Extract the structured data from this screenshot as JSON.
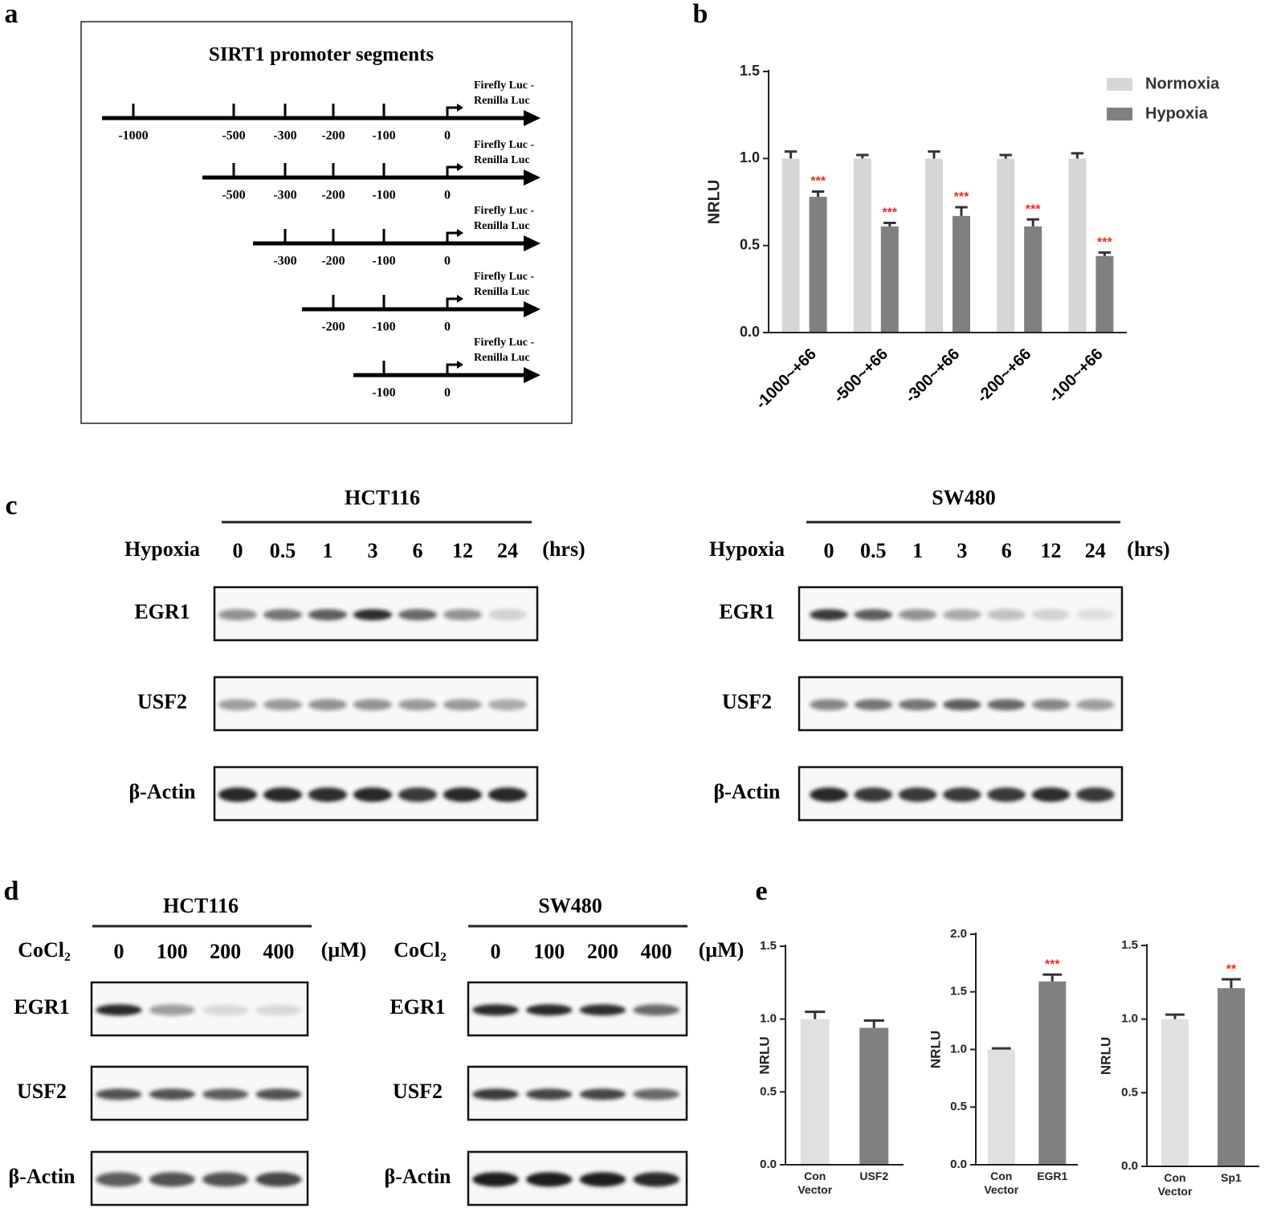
{
  "panel_labels": [
    "a",
    "b",
    "c",
    "d",
    "e"
  ],
  "a": {
    "title": "SIRT1 promoter segments",
    "segments": [
      {
        "ticks": [
          "-1000",
          "-500",
          "-300",
          "-200",
          "-100",
          "0"
        ],
        "reporter": [
          "Firefly Luc -",
          "Renilla Luc"
        ]
      },
      {
        "ticks": [
          "-500",
          "-300",
          "-200",
          "-100",
          "0"
        ],
        "reporter": [
          "Firefly Luc -",
          "Renilla Luc"
        ]
      },
      {
        "ticks": [
          "-300",
          "-200",
          "-100",
          "0"
        ],
        "reporter": [
          "Firefly Luc -",
          "Renilla Luc"
        ]
      },
      {
        "ticks": [
          "-200",
          "-100",
          "0"
        ],
        "reporter": [
          "Firefly Luc -",
          "Renilla Luc"
        ]
      },
      {
        "ticks": [
          "-100",
          "0"
        ],
        "reporter": [
          "Firefly Luc -",
          "Renilla Luc"
        ]
      }
    ]
  },
  "chart_data": [
    {
      "type": "bar",
      "ylabel": "NRLU",
      "categories": [
        "-1000~+66",
        "-500~+66",
        "-300~+66",
        "-200~+66",
        "-100~+66"
      ],
      "series": [
        {
          "name": "Normoxia",
          "color": "#d6d6d6",
          "values": [
            1.0,
            1.0,
            1.0,
            1.0,
            1.0
          ],
          "errors": [
            0.04,
            0.02,
            0.04,
            0.02,
            0.03
          ]
        },
        {
          "name": "Hypoxia",
          "color": "#808080",
          "values": [
            0.78,
            0.61,
            0.67,
            0.61,
            0.44
          ],
          "errors": [
            0.03,
            0.02,
            0.05,
            0.04,
            0.02
          ],
          "annotations": [
            "***",
            "***",
            "***",
            "***",
            "***"
          ]
        }
      ],
      "annotation_color": "#ff2020",
      "ylim": [
        0,
        1.5
      ],
      "yticks": [
        {
          "value": 0,
          "label": "0.0"
        },
        0.5,
        {
          "value": 1,
          "label": "1.0"
        },
        1.5
      ],
      "legend": "upper right"
    },
    {
      "type": "bar",
      "ylabel": "NRLU",
      "categories": [
        "Con\nVector",
        "USF2"
      ],
      "values": [
        1.0,
        0.94
      ],
      "errors": [
        0.05,
        0.05
      ],
      "colors": [
        "#e0e0e0",
        "#808080"
      ],
      "ylim": [
        0,
        1.5
      ],
      "yticks": [
        {
          "value": 0,
          "label": "0.0"
        },
        0.5,
        {
          "value": 1,
          "label": "1.0"
        },
        1.5
      ]
    },
    {
      "type": "bar",
      "ylabel": "NRLU",
      "categories": [
        "Con\nVector",
        "EGR1"
      ],
      "values": [
        1.0,
        1.59
      ],
      "errors": [
        0.01,
        0.06
      ],
      "colors": [
        "#e0e0e0",
        "#808080"
      ],
      "annotations": [
        null,
        "***"
      ],
      "annotation_color": "#ff2020",
      "ylim": [
        0,
        2
      ],
      "yticks": [
        {
          "value": 0,
          "label": "0.0"
        },
        0.5,
        {
          "value": 1,
          "label": "1.0"
        },
        1.5,
        {
          "value": 2,
          "label": "2.0"
        }
      ]
    },
    {
      "type": "bar",
      "ylabel": "NRLU",
      "categories": [
        "Con\nVector",
        "Sp1"
      ],
      "values": [
        1.0,
        1.21
      ],
      "errors": [
        0.03,
        0.06
      ],
      "colors": [
        "#e0e0e0",
        "#808080"
      ],
      "annotations": [
        null,
        "**"
      ],
      "annotation_color": "#ff2020",
      "ylim": [
        0,
        1.5
      ],
      "yticks": [
        {
          "value": 0,
          "label": "0.0"
        },
        0.5,
        {
          "value": 1,
          "label": "1.0"
        },
        1.5
      ]
    }
  ],
  "c": {
    "blots": [
      {
        "cell_line": "HCT116",
        "treatment": "Hypoxia",
        "conditions": [
          "0",
          "0.5",
          "1",
          "3",
          "6",
          "12",
          "24"
        ],
        "unit": "(hrs)",
        "proteins": [
          "EGR1",
          "USF2",
          "β-Actin"
        ]
      },
      {
        "cell_line": "SW480",
        "treatment": "Hypoxia",
        "conditions": [
          "0",
          "0.5",
          "1",
          "3",
          "6",
          "12",
          "24"
        ],
        "unit": "(hrs)",
        "proteins": [
          "EGR1",
          "USF2",
          "β-Actin"
        ]
      }
    ]
  },
  "d": {
    "blots": [
      {
        "cell_line": "HCT116",
        "treatment": "CoCl₂",
        "conditions": [
          "0",
          "100",
          "200",
          "400"
        ],
        "unit": "(μM)",
        "proteins": [
          "EGR1",
          "USF2",
          "β-Actin"
        ]
      },
      {
        "cell_line": "SW480",
        "treatment": "CoCl₂",
        "conditions": [
          "0",
          "100",
          "200",
          "400"
        ],
        "unit": "(μM)",
        "proteins": [
          "EGR1",
          "USF2",
          "β-Actin"
        ]
      }
    ]
  }
}
